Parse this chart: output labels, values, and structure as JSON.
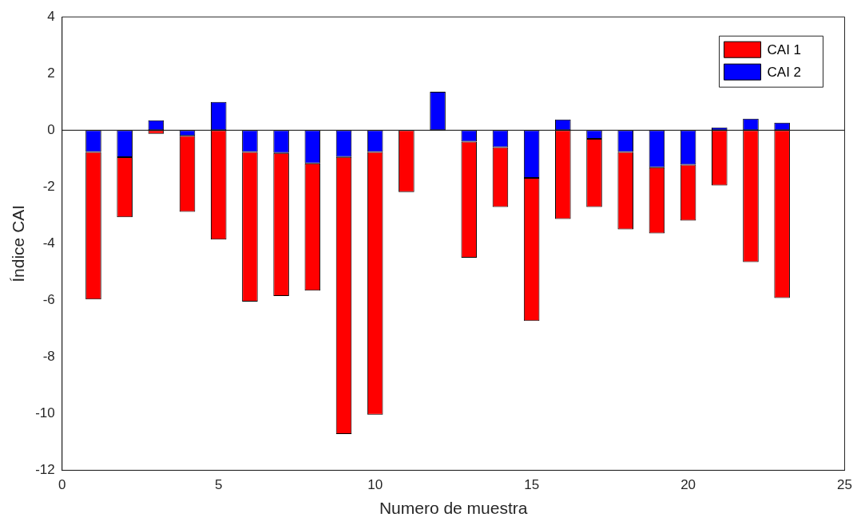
{
  "chart_data": {
    "type": "bar",
    "stacked": true,
    "xlabel": "Numero de muestra",
    "ylabel": "Índice CAI",
    "x": [
      1,
      2,
      3,
      4,
      5,
      6,
      7,
      8,
      9,
      10,
      11,
      12,
      13,
      14,
      15,
      16,
      17,
      18,
      19,
      20,
      21,
      22,
      23
    ],
    "series": [
      {
        "name": "CAI 2",
        "color": "#0000ff",
        "values": [
          -0.77,
          -0.95,
          0.35,
          -0.2,
          1.0,
          -0.77,
          -0.8,
          -1.17,
          -0.94,
          -0.77,
          null,
          1.36,
          -0.4,
          -0.6,
          -1.68,
          0.38,
          -0.3,
          -0.77,
          -1.31,
          -1.22,
          0.1,
          0.41,
          0.27
        ]
      },
      {
        "name": "CAI 1",
        "color": "#ff0000",
        "values": [
          -5.2,
          -2.12,
          -0.13,
          -2.68,
          -3.86,
          -5.28,
          -5.05,
          -4.49,
          -9.78,
          -9.27,
          -2.18,
          null,
          -4.1,
          -2.11,
          -5.05,
          -3.13,
          -2.41,
          -2.73,
          -2.33,
          -1.97,
          -1.95,
          -4.65,
          -5.92
        ]
      }
    ],
    "xlim": [
      0,
      25
    ],
    "xticks": [
      0,
      5,
      10,
      15,
      20,
      25
    ],
    "ylim": [
      -12,
      4
    ],
    "yticks": [
      -12,
      -10,
      -8,
      -6,
      -4,
      -2,
      0,
      2,
      4
    ],
    "ref_lines": [
      {
        "axis": "y",
        "value": 0,
        "color": "#000000"
      }
    ],
    "grid": false,
    "legend": "top right"
  }
}
